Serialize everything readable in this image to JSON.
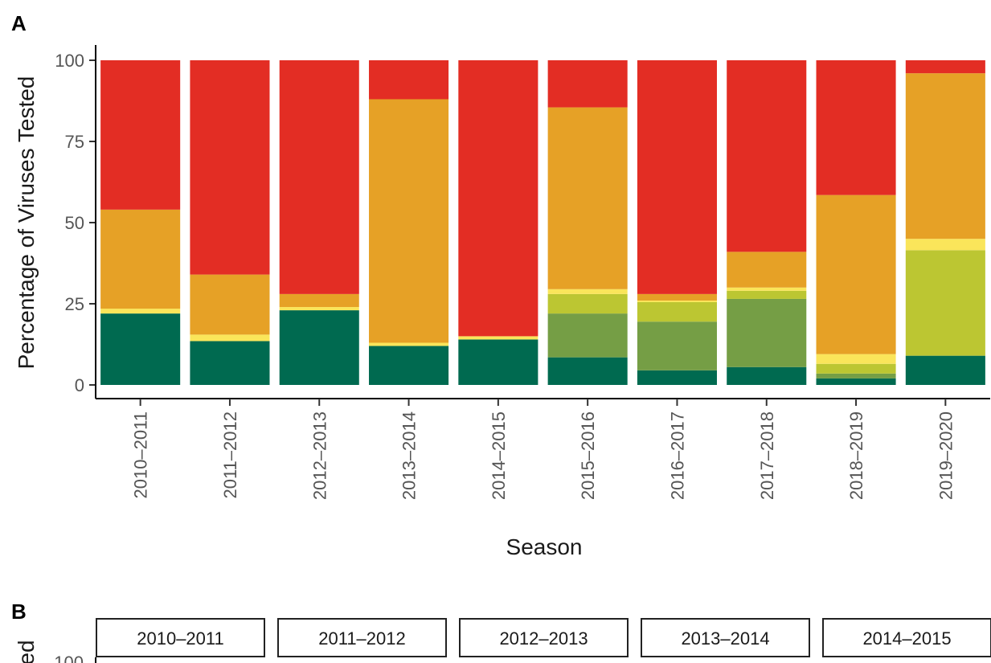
{
  "panel_a_label": "A",
  "panel_b_label": "B",
  "chart_data": {
    "type": "bar",
    "stacked": true,
    "xlabel": "Season",
    "ylabel": "Percentage of Viruses Tested",
    "ylim": [
      0,
      100
    ],
    "yticks": [
      0,
      25,
      50,
      75,
      100
    ],
    "grid": false,
    "legend": "none",
    "categories": [
      "2010–2011",
      "2011–2012",
      "2012–2013",
      "2013–2014",
      "2014–2015",
      "2015–2016",
      "2016–2017",
      "2017–2018",
      "2018–2019",
      "2019–2020"
    ],
    "series": [
      {
        "color": "#006a50",
        "values": [
          22,
          13.5,
          23,
          12,
          14,
          8.5,
          4.5,
          5.5,
          2,
          9
        ]
      },
      {
        "color": "#759e45",
        "values": [
          0,
          0,
          0,
          0,
          0,
          13.5,
          15,
          21,
          1.5,
          0
        ]
      },
      {
        "color": "#bcc632",
        "values": [
          0,
          0,
          0,
          0,
          0,
          6,
          6,
          2.5,
          3,
          32.5
        ]
      },
      {
        "color": "#fae55a",
        "values": [
          1.5,
          2,
          1,
          1,
          1,
          1.5,
          0.5,
          1,
          3,
          3.5
        ]
      },
      {
        "color": "#e6a126",
        "values": [
          30.5,
          18.5,
          4,
          75,
          0,
          56,
          2,
          11,
          49,
          51
        ]
      },
      {
        "color": "#e32d24",
        "values": [
          46,
          66,
          72,
          12,
          85,
          14.5,
          72,
          59,
          41.5,
          4
        ]
      }
    ]
  },
  "panel_b": {
    "strips": [
      "2010–2011",
      "2011–2012",
      "2012–2013",
      "2013–2014",
      "2014–2015"
    ],
    "ylabel_partial": "ed",
    "tick_partial": "100"
  }
}
